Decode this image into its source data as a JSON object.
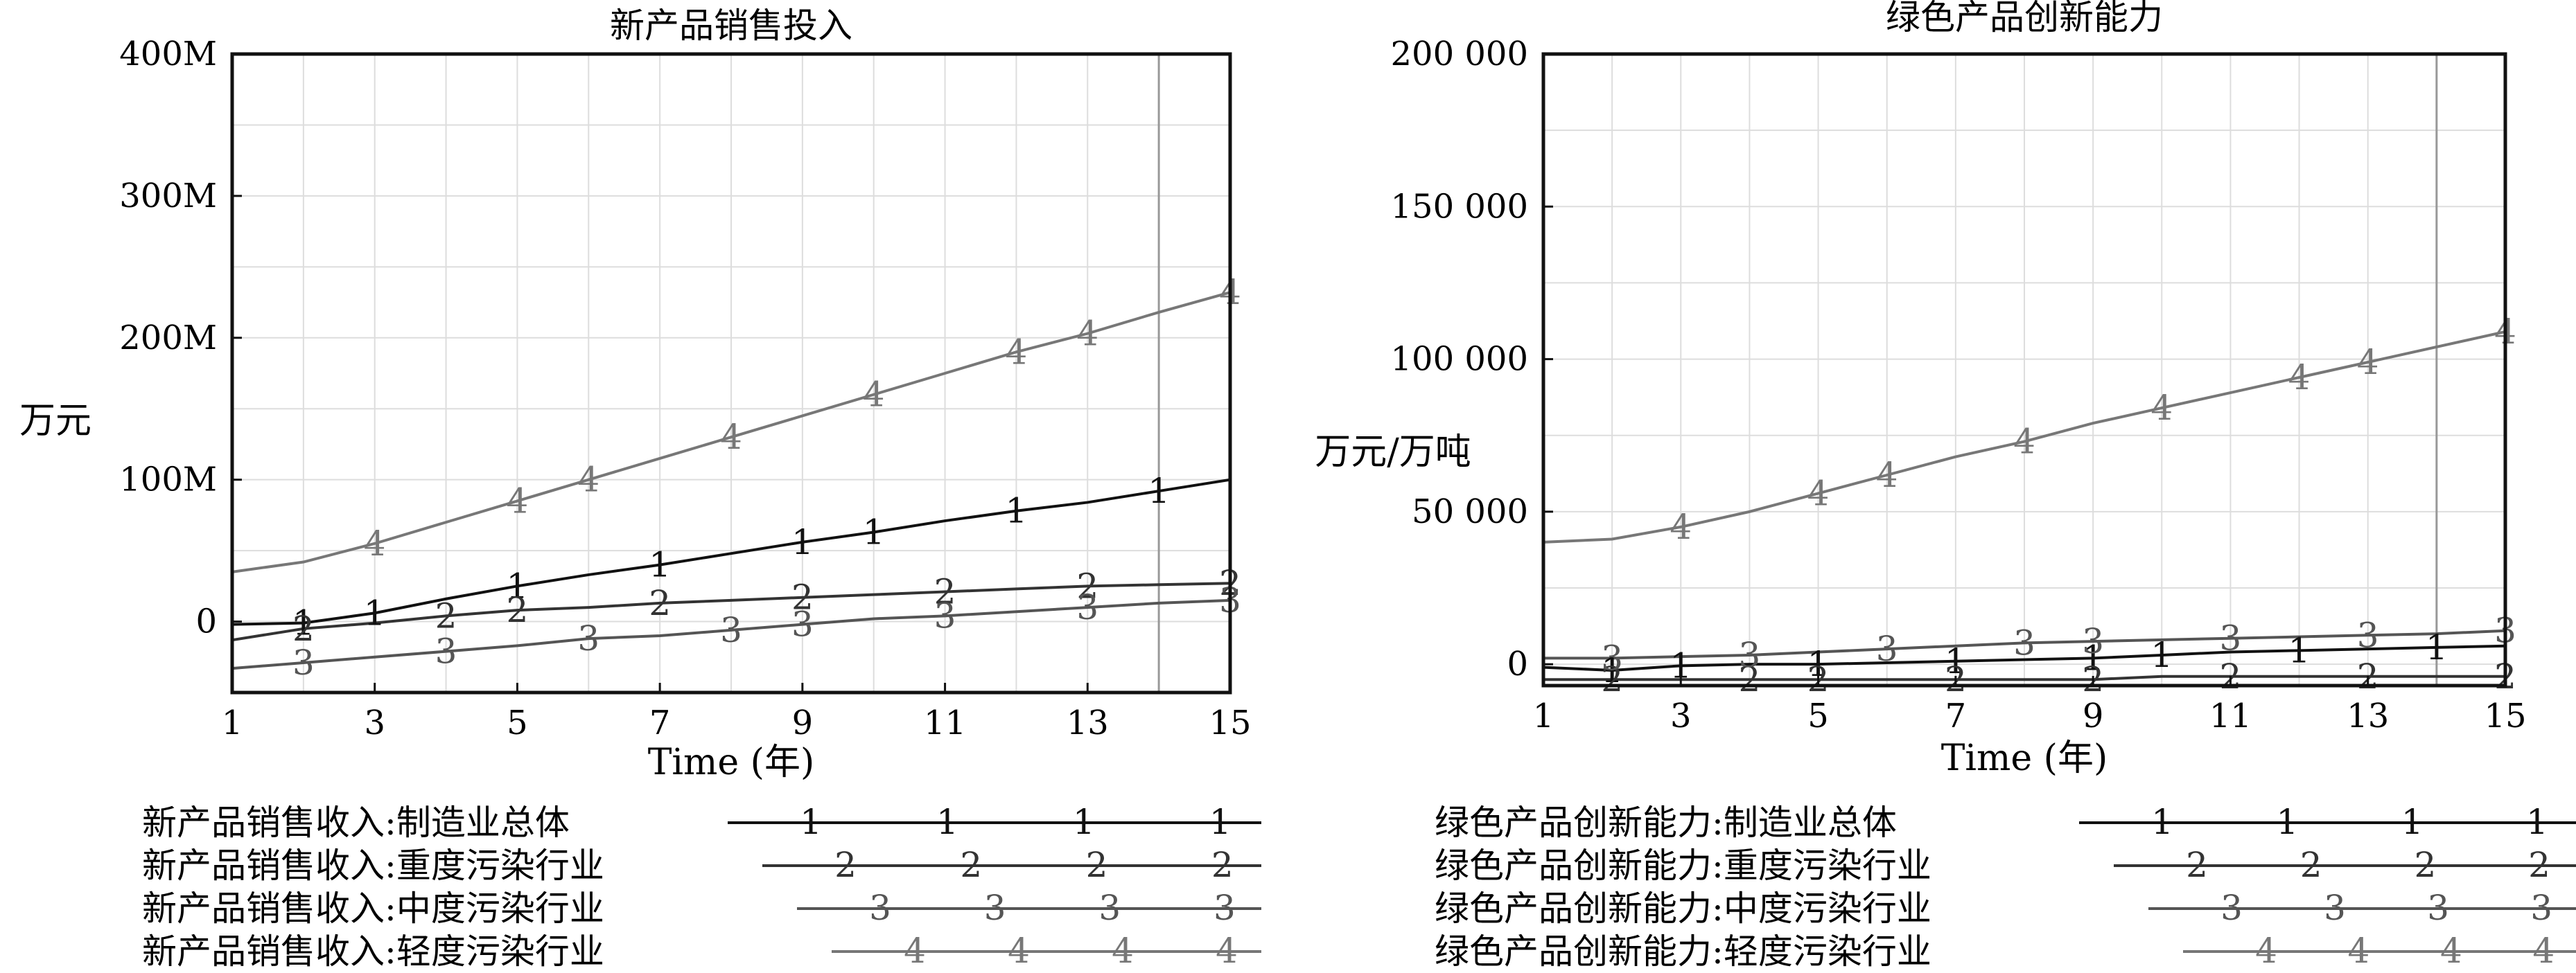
{
  "chart_data": [
    {
      "type": "line",
      "title": "新产品销售投入",
      "xlabel": "Time (年)",
      "ylabel": "万元",
      "xlim": [
        1,
        15
      ],
      "xticks": [
        "1",
        "3",
        "5",
        "7",
        "9",
        "11",
        "13",
        "15"
      ],
      "yticks": [
        {
          "value": 0,
          "label": "0"
        },
        {
          "value": 100000000,
          "label": "100M"
        },
        {
          "value": 200000000,
          "label": "200M"
        },
        {
          "value": 300000000,
          "label": "300M"
        },
        {
          "value": 400000000,
          "label": "400M"
        }
      ],
      "ylim": [
        -50000000,
        400000000
      ],
      "grid": true,
      "x": [
        1,
        2,
        3,
        4,
        5,
        6,
        7,
        8,
        9,
        10,
        11,
        12,
        13,
        14,
        15
      ],
      "series": [
        {
          "marker": "1",
          "color": "#111111",
          "name": "新产品销售收入:制造业总体",
          "values": [
            -2000000,
            -1000000,
            6000000,
            16000000,
            25000000,
            33000000,
            40000000,
            48000000,
            56000000,
            63000000,
            71000000,
            78000000,
            84000000,
            92000000,
            100000000
          ]
        },
        {
          "marker": "2",
          "color": "#333333",
          "name": "新产品销售收入:重度污染行业",
          "values": [
            -13000000,
            -5000000,
            -1000000,
            4000000,
            8000000,
            10000000,
            13000000,
            15000000,
            17000000,
            19000000,
            21000000,
            23000000,
            25000000,
            26000000,
            27000000
          ]
        },
        {
          "marker": "3",
          "color": "#555555",
          "name": "新产品销售收入:中度污染行业",
          "values": [
            -33000000,
            -29000000,
            -25000000,
            -21000000,
            -17000000,
            -12000000,
            -10000000,
            -6000000,
            -2000000,
            2000000,
            4000000,
            7000000,
            10000000,
            13000000,
            15000000
          ]
        },
        {
          "marker": "4",
          "color": "#777777",
          "name": "新产品销售收入:轻度污染行业",
          "values": [
            35000000,
            42000000,
            55000000,
            70000000,
            85000000,
            100000000,
            115000000,
            130000000,
            145000000,
            160000000,
            175000000,
            190000000,
            203000000,
            218000000,
            232000000
          ]
        }
      ]
    },
    {
      "type": "line",
      "title": "绿色产品创新能力",
      "xlabel": "Time (年)",
      "ylabel": "万元/万吨",
      "xlim": [
        1,
        15
      ],
      "xticks": [
        "1",
        "3",
        "5",
        "7",
        "9",
        "11",
        "13",
        "15"
      ],
      "yticks": [
        {
          "value": 0,
          "label": "0"
        },
        {
          "value": 50000,
          "label": "50 000"
        },
        {
          "value": 100000,
          "label": "100 000"
        },
        {
          "value": 150000,
          "label": "150 000"
        },
        {
          "value": 200000,
          "label": "200 000"
        }
      ],
      "ylim": [
        -7000,
        200000
      ],
      "grid": true,
      "x": [
        1,
        2,
        3,
        4,
        5,
        6,
        7,
        8,
        9,
        10,
        11,
        12,
        13,
        14,
        15
      ],
      "series": [
        {
          "marker": "1",
          "color": "#111111",
          "name": "绿色产品创新能力:制造业总体",
          "values": [
            -1000,
            -2000,
            -500,
            0,
            0,
            500,
            1000,
            1500,
            2000,
            3000,
            4000,
            4500,
            5000,
            5500,
            6000
          ]
        },
        {
          "marker": "2",
          "color": "#333333",
          "name": "绿色产品创新能力:重度污染行业",
          "values": [
            -5000,
            -5000,
            -5000,
            -5000,
            -5000,
            -5000,
            -5000,
            -5000,
            -5000,
            -4000,
            -4000,
            -4000,
            -4000,
            -4000,
            -4000
          ]
        },
        {
          "marker": "3",
          "color": "#555555",
          "name": "绿色产品创新能力:中度污染行业",
          "values": [
            2000,
            2000,
            2500,
            3000,
            4000,
            5000,
            6000,
            7000,
            7500,
            8000,
            8500,
            9000,
            9500,
            10000,
            11000
          ]
        },
        {
          "marker": "4",
          "color": "#777777",
          "name": "绿色产品创新能力:轻度污染行业",
          "values": [
            40000,
            41000,
            45000,
            50000,
            56000,
            62000,
            68000,
            73000,
            79000,
            84000,
            89000,
            94000,
            99000,
            104000,
            109000
          ]
        }
      ]
    }
  ]
}
